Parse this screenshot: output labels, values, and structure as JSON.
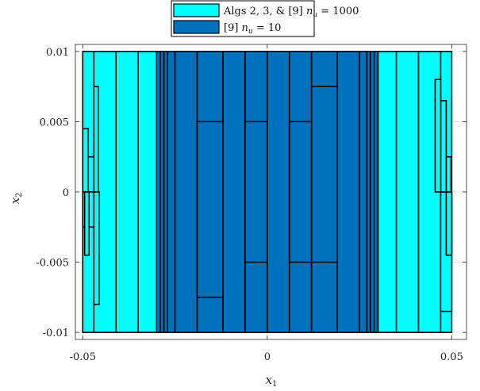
{
  "chart_data": {
    "type": "box-partition",
    "title": "",
    "xlabel": "x",
    "xlabel_sub": "1",
    "ylabel": "x",
    "ylabel_sub": "2",
    "xlim": [
      -0.052,
      0.054
    ],
    "ylim": [
      -0.0105,
      0.0105
    ],
    "xticks": [
      -0.05,
      0,
      0.05
    ],
    "xtick_labels": [
      "-0.05",
      "0",
      "0.05"
    ],
    "yticks": [
      -0.01,
      -0.005,
      0,
      0.005,
      0.01
    ],
    "ytick_labels": [
      "-0.01",
      "-0.005",
      "0",
      "0.005",
      "0.01"
    ],
    "grid": true,
    "legend_position": "top-center-outside",
    "series": [
      {
        "name": "Algs 2, 3, & [9] n_u = 1000",
        "legend_label": "Algs 2, 3, & [9] ",
        "legend_math": "n",
        "legend_math_sub": "u",
        "legend_math_tail": " = 1000",
        "color": "#00FFFF",
        "boxes": [
          [
            -0.05,
            -0.047,
            -0.01,
            0.01
          ],
          [
            -0.047,
            -0.041,
            -0.01,
            0.01
          ],
          [
            -0.041,
            -0.035,
            -0.01,
            0.01
          ],
          [
            -0.035,
            -0.03,
            -0.01,
            0.01
          ],
          [
            -0.05,
            -0.047,
            0.0,
            0.0025
          ],
          [
            -0.05,
            -0.047,
            -0.0025,
            0.0
          ],
          [
            -0.05,
            -0.0485,
            0.0,
            0.0045
          ],
          [
            -0.0495,
            -0.0483,
            -0.0045,
            0.0
          ],
          [
            -0.047,
            -0.0455,
            -0.008,
            0.0
          ],
          [
            -0.047,
            -0.0458,
            0.0,
            0.0075
          ],
          [
            0.03,
            0.035,
            -0.01,
            0.01
          ],
          [
            0.035,
            0.041,
            -0.01,
            0.01
          ],
          [
            0.041,
            0.047,
            -0.01,
            0.01
          ],
          [
            0.047,
            0.05,
            -0.01,
            0.01
          ],
          [
            0.047,
            0.05,
            -0.0085,
            0.0
          ],
          [
            0.047,
            0.0485,
            0.0,
            0.0065
          ],
          [
            0.0485,
            0.05,
            -0.0045,
            0.0
          ],
          [
            0.0485,
            0.0498,
            0.0,
            0.0025
          ],
          [
            0.0455,
            0.047,
            0.0,
            0.008
          ]
        ]
      },
      {
        "name": "[9] n_u = 10",
        "legend_label": "[9] ",
        "legend_math": "n",
        "legend_math_sub": "u",
        "legend_math_tail": " = 10",
        "color": "#0072BD",
        "boxes": [
          [
            -0.03,
            -0.029,
            -0.01,
            0.01
          ],
          [
            -0.029,
            -0.028,
            -0.01,
            0.01
          ],
          [
            -0.028,
            -0.027,
            -0.01,
            0.01
          ],
          [
            -0.027,
            -0.025,
            -0.01,
            0.01
          ],
          [
            -0.025,
            -0.019,
            -0.01,
            0.01
          ],
          [
            -0.019,
            -0.012,
            -0.01,
            0.01
          ],
          [
            -0.012,
            -0.006,
            -0.01,
            0.01
          ],
          [
            -0.006,
            0.0,
            -0.01,
            0.01
          ],
          [
            0.0,
            0.006,
            -0.01,
            0.01
          ],
          [
            0.006,
            0.012,
            -0.01,
            0.01
          ],
          [
            0.012,
            0.019,
            -0.01,
            0.01
          ],
          [
            0.019,
            0.025,
            -0.01,
            0.01
          ],
          [
            0.025,
            0.027,
            -0.01,
            0.01
          ],
          [
            0.027,
            0.028,
            -0.01,
            0.01
          ],
          [
            0.028,
            0.029,
            -0.01,
            0.01
          ],
          [
            0.029,
            0.03,
            -0.01,
            0.01
          ],
          [
            -0.006,
            0.0,
            -0.005,
            0.005
          ],
          [
            0.006,
            0.012,
            -0.005,
            0.005
          ],
          [
            -0.019,
            -0.012,
            -0.0075,
            0.005
          ],
          [
            0.012,
            0.019,
            -0.005,
            0.0075
          ]
        ]
      }
    ]
  }
}
